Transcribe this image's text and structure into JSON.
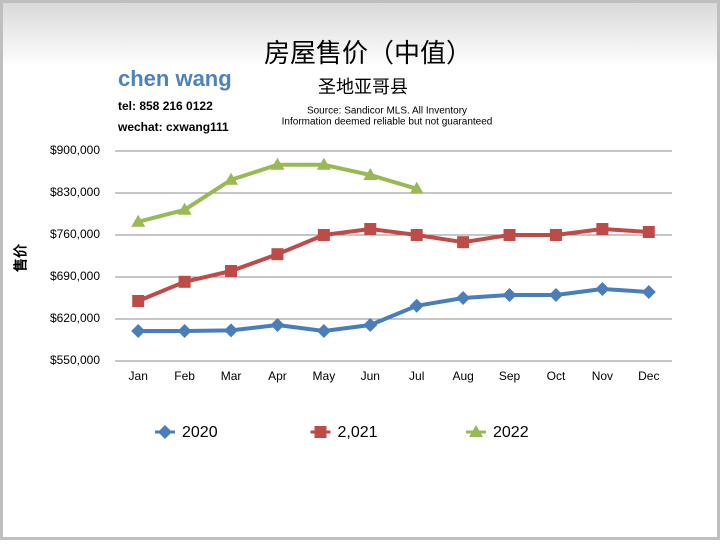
{
  "chart_data": {
    "type": "line",
    "title": "房屋售价（中值）",
    "subtitle": "圣地亚哥县",
    "source": [
      "Source: Sandicor MLS. All Inventory",
      "Information deemed reliable but not guaranteed"
    ],
    "annotations": [
      "chen wang",
      "tel: 858 216 0122",
      "wechat: cxwang111"
    ],
    "y_label": "售价",
    "categories": [
      "Jan",
      "Feb",
      "Mar",
      "Apr",
      "May",
      "Jun",
      "Jul",
      "Aug",
      "Sep",
      "Oct",
      "Nov",
      "Dec"
    ],
    "series": [
      {
        "name": "2020",
        "color": "#4a7ebb",
        "marker": "diamond",
        "values": [
          600000,
          600000,
          601000,
          610000,
          600000,
          610000,
          642000,
          655000,
          660000,
          660000,
          670000,
          665000
        ]
      },
      {
        "name": "2,021",
        "color": "#be4b48",
        "marker": "square",
        "values": [
          650000,
          682000,
          700000,
          728000,
          760000,
          770000,
          760000,
          748000,
          760000,
          760000,
          770000,
          765000
        ]
      },
      {
        "name": "2022",
        "color": "#98b954",
        "marker": "triangle",
        "values": [
          782000,
          802000,
          852000,
          877000,
          877000,
          860000,
          837000,
          null,
          null,
          null,
          null,
          null
        ]
      }
    ],
    "ylim": [
      550000,
      900000
    ],
    "yticks": [
      {
        "value": 550000,
        "label": "$550,000"
      },
      {
        "value": 620000,
        "label": "$620,000"
      },
      {
        "value": 690000,
        "label": "$690,000"
      },
      {
        "value": 760000,
        "label": "$760,000"
      },
      {
        "value": 830000,
        "label": "$830,000"
      },
      {
        "value": 900000,
        "label": "$900,000"
      }
    ],
    "grid": true,
    "legend": "bottom"
  }
}
